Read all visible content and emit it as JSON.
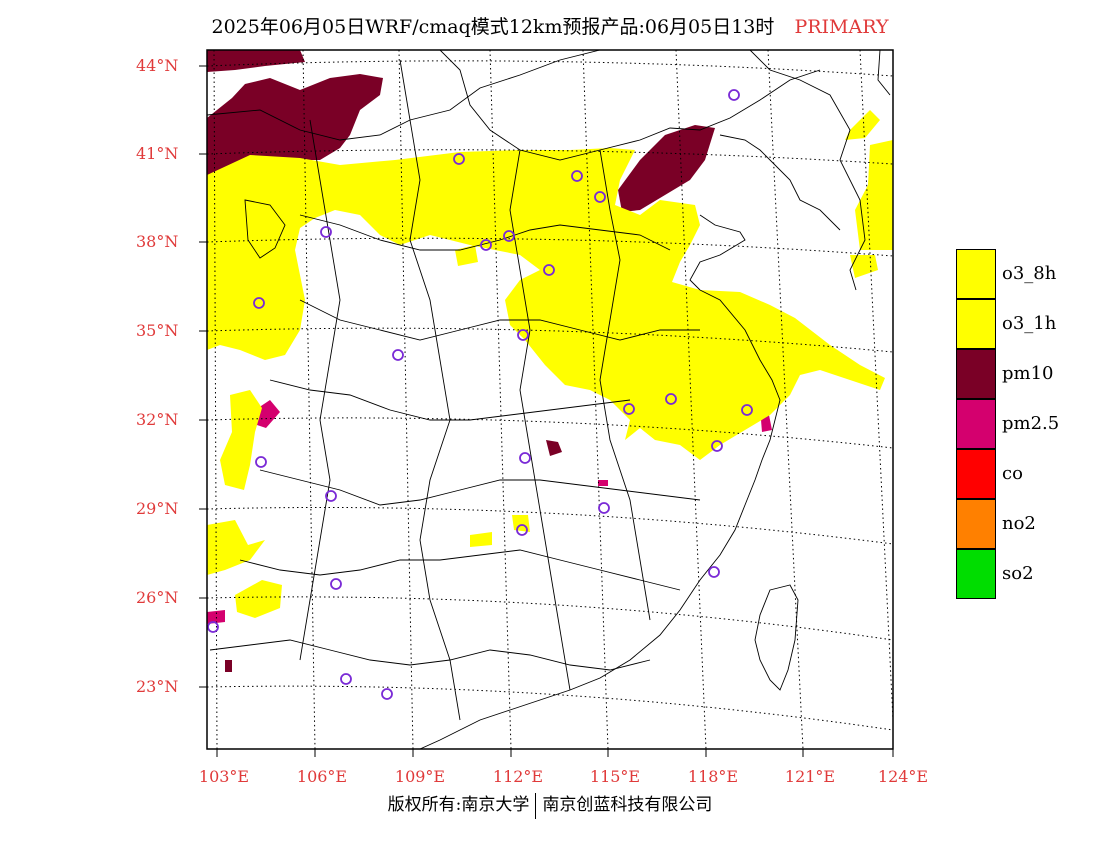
{
  "title": {
    "main": "2025年06月05日WRF/cmaq模式12km预报产品:06月05日13时",
    "tag": "PRIMARY"
  },
  "axes": {
    "lat_labels": [
      "44°N",
      "41°N",
      "38°N",
      "35°N",
      "32°N",
      "29°N",
      "26°N",
      "23°N"
    ],
    "lon_labels": [
      "103°E",
      "106°E",
      "109°E",
      "112°E",
      "115°E",
      "118°E",
      "121°E",
      "124°E"
    ]
  },
  "legend": [
    {
      "label": "o3_8h",
      "color": "#ffff00"
    },
    {
      "label": "o3_1h",
      "color": "#ffff00"
    },
    {
      "label": "pm10",
      "color": "#7a0026"
    },
    {
      "label": "pm2.5",
      "color": "#d4006e"
    },
    {
      "label": "co",
      "color": "#ff0000"
    },
    {
      "label": "no2",
      "color": "#ff8000"
    },
    {
      "label": "so2",
      "color": "#00dd00"
    }
  ],
  "colors": {
    "axis_label": "#e03a3a",
    "station_marker": "#7a2ad6"
  },
  "footer": {
    "left": "版权所有:南京大学",
    "right": "南京创蓝科技有限公司"
  }
}
